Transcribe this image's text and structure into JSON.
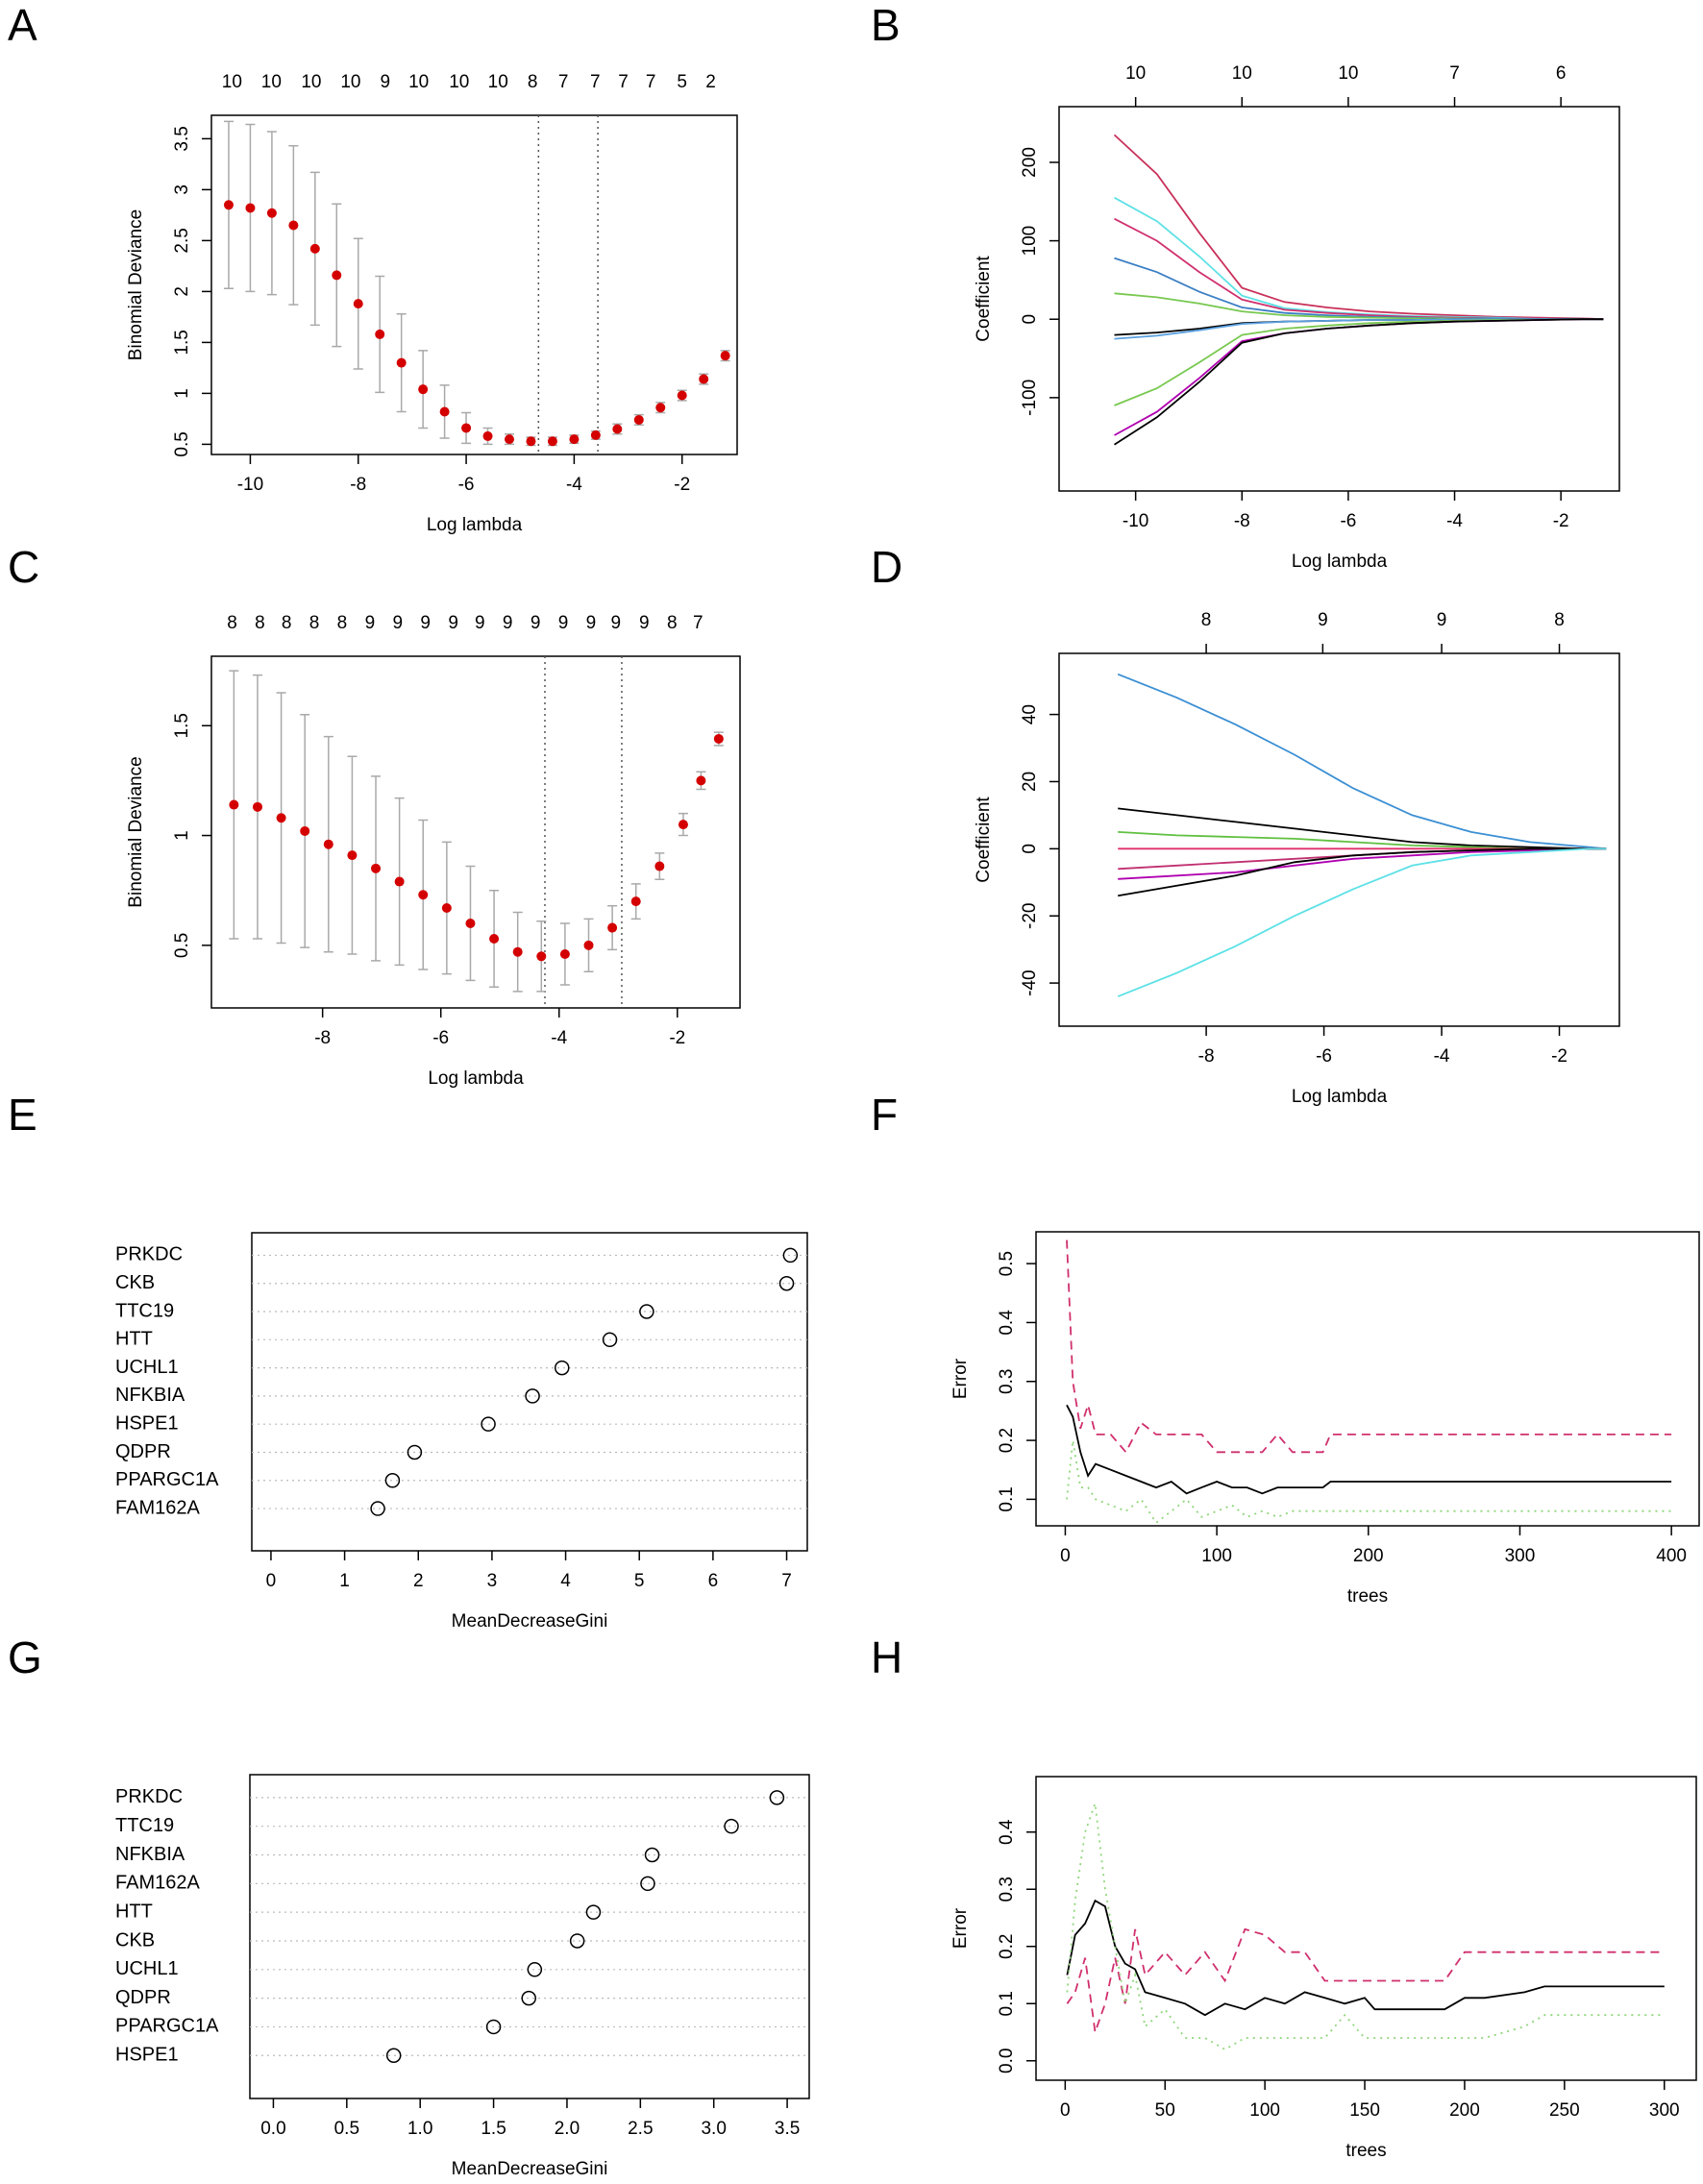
{
  "chart_data": [
    {
      "label": "A",
      "type": "errorbar",
      "xlabel": "Log lambda",
      "ylabel": "Binomial Deviance",
      "color": "#d40000",
      "error_color": "#a9a9a9",
      "x": [
        -10.4,
        -10.0,
        -9.6,
        -9.2,
        -8.8,
        -8.4,
        -8.0,
        -7.6,
        -7.2,
        -6.8,
        -6.4,
        -6.0,
        -5.6,
        -5.2,
        -4.8,
        -4.4,
        -4.0,
        -3.6,
        -3.2,
        -2.8,
        -2.4,
        -2.0,
        -1.6,
        -1.2
      ],
      "values": [
        2.85,
        2.82,
        2.77,
        2.65,
        2.42,
        2.16,
        1.88,
        1.58,
        1.3,
        1.04,
        0.82,
        0.66,
        0.58,
        0.55,
        0.53,
        0.53,
        0.55,
        0.59,
        0.65,
        0.74,
        0.86,
        0.98,
        1.14,
        1.37
      ],
      "errors": [
        0.82,
        0.82,
        0.8,
        0.78,
        0.75,
        0.7,
        0.64,
        0.57,
        0.48,
        0.38,
        0.26,
        0.15,
        0.08,
        0.05,
        0.04,
        0.04,
        0.04,
        0.04,
        0.05,
        0.05,
        0.05,
        0.05,
        0.05,
        0.05
      ],
      "xlim": [
        -10.72,
        -0.98
      ],
      "ylim": [
        0.4,
        3.73
      ],
      "xticks": [
        -10,
        -8,
        -6,
        -4,
        -2
      ],
      "yticks": [
        0.5,
        1.0,
        1.5,
        2.0,
        2.5,
        3.0,
        3.5
      ],
      "top_ticks": [
        {
          "value": -10.34,
          "label": "10"
        },
        {
          "value": -9.61,
          "label": "10"
        },
        {
          "value": -8.87,
          "label": "10"
        },
        {
          "value": -8.14,
          "label": "10"
        },
        {
          "value": -7.5,
          "label": "9"
        },
        {
          "value": -6.88,
          "label": "10"
        },
        {
          "value": -6.13,
          "label": "10"
        },
        {
          "value": -5.41,
          "label": "10"
        },
        {
          "value": -4.77,
          "label": "8"
        },
        {
          "value": -4.2,
          "label": "7"
        },
        {
          "value": -3.61,
          "label": "7"
        },
        {
          "value": -3.09,
          "label": "7"
        },
        {
          "value": -2.58,
          "label": "7"
        },
        {
          "value": -2.0,
          "label": "5"
        },
        {
          "value": -1.47,
          "label": "2"
        }
      ],
      "vlines": [
        -4.66,
        -3.56
      ]
    },
    {
      "label": "B",
      "type": "line",
      "xlabel": "Log lambda",
      "ylabel": "Coefficient",
      "x": [
        -10.4,
        -9.6,
        -8.8,
        -8.0,
        -7.2,
        -6.4,
        -5.6,
        -4.8,
        -4.0,
        -3.2,
        -2.4,
        -1.6,
        -1.2
      ],
      "series": [
        {
          "color": "#c8305a",
          "values": [
            235,
            185,
            110,
            40,
            22,
            15,
            10,
            7,
            5,
            3,
            2,
            1,
            0
          ]
        },
        {
          "color": "#5ce1e6",
          "values": [
            155,
            125,
            80,
            30,
            14,
            9,
            6,
            4,
            3,
            2,
            1,
            0.5,
            0
          ]
        },
        {
          "color": "#d0306e",
          "values": [
            128,
            100,
            60,
            25,
            12,
            8,
            5,
            3,
            2,
            1,
            1,
            0.5,
            0
          ]
        },
        {
          "color": "#3b7fc4",
          "values": [
            78,
            60,
            35,
            15,
            8,
            5,
            3,
            2,
            1,
            1,
            0,
            0,
            0
          ]
        },
        {
          "color": "#78c850",
          "values": [
            33,
            28,
            20,
            10,
            5,
            3,
            2,
            1,
            1,
            0,
            0,
            0,
            0
          ]
        },
        {
          "color": "#000000",
          "values": [
            -20,
            -17,
            -12,
            -5,
            -3,
            -2,
            -1,
            -1,
            0,
            0,
            0,
            0,
            0
          ]
        },
        {
          "color": "#5aa0e0",
          "values": [
            -25,
            -21,
            -14,
            -6,
            -3,
            -2,
            -1,
            -1,
            0,
            0,
            0,
            0,
            0
          ]
        },
        {
          "color": "#78c850",
          "values": [
            -110,
            -88,
            -55,
            -20,
            -12,
            -8,
            -5,
            -3,
            -2,
            -1,
            -1,
            0,
            0
          ]
        },
        {
          "color": "#b000b0",
          "values": [
            -148,
            -118,
            -75,
            -28,
            -18,
            -12,
            -8,
            -5,
            -3,
            -2,
            -1,
            0,
            0
          ]
        },
        {
          "color": "#000000",
          "values": [
            -160,
            -125,
            -80,
            -30,
            -18,
            -12,
            -8,
            -5,
            -3,
            -2,
            -1,
            0,
            0
          ]
        }
      ],
      "xlim": [
        -11.44,
        -0.9
      ],
      "ylim": [
        -219,
        271
      ],
      "xticks": [
        -10,
        -8,
        -6,
        -4,
        -2
      ],
      "yticks": [
        -100,
        0,
        100,
        200
      ],
      "top_ticks": [
        {
          "value": -10,
          "label": "10"
        },
        {
          "value": -8,
          "label": "10"
        },
        {
          "value": -6,
          "label": "10"
        },
        {
          "value": -4,
          "label": "7"
        },
        {
          "value": -2,
          "label": "6"
        }
      ]
    },
    {
      "label": "C",
      "type": "errorbar",
      "xlabel": "Log lambda",
      "ylabel": "Binomial Deviance",
      "color": "#d40000",
      "error_color": "#a9a9a9",
      "x": [
        -9.5,
        -9.1,
        -8.7,
        -8.3,
        -7.9,
        -7.5,
        -7.1,
        -6.7,
        -6.3,
        -5.9,
        -5.5,
        -5.1,
        -4.7,
        -4.3,
        -3.9,
        -3.5,
        -3.1,
        -2.7,
        -2.3,
        -1.9,
        -1.6,
        -1.3
      ],
      "values": [
        1.14,
        1.13,
        1.08,
        1.02,
        0.96,
        0.91,
        0.85,
        0.79,
        0.73,
        0.67,
        0.6,
        0.53,
        0.47,
        0.45,
        0.46,
        0.5,
        0.58,
        0.7,
        0.86,
        1.05,
        1.25,
        1.44
      ],
      "errors": [
        0.61,
        0.6,
        0.57,
        0.53,
        0.49,
        0.45,
        0.42,
        0.38,
        0.34,
        0.3,
        0.26,
        0.22,
        0.18,
        0.16,
        0.14,
        0.12,
        0.1,
        0.08,
        0.06,
        0.05,
        0.04,
        0.03
      ],
      "xlim": [
        -9.88,
        -0.94
      ],
      "ylim": [
        0.215,
        1.816
      ],
      "xticks": [
        -8,
        -6,
        -4,
        -2
      ],
      "yticks": [
        0.5,
        1.0,
        1.5
      ],
      "top_ticks": [
        {
          "value": -9.53,
          "label": "8"
        },
        {
          "value": -9.06,
          "label": "8"
        },
        {
          "value": -8.61,
          "label": "8"
        },
        {
          "value": -8.14,
          "label": "8"
        },
        {
          "value": -7.67,
          "label": "8"
        },
        {
          "value": -7.2,
          "label": "9"
        },
        {
          "value": -6.73,
          "label": "9"
        },
        {
          "value": -6.26,
          "label": "9"
        },
        {
          "value": -5.79,
          "label": "9"
        },
        {
          "value": -5.34,
          "label": "9"
        },
        {
          "value": -4.87,
          "label": "9"
        },
        {
          "value": -4.4,
          "label": "9"
        },
        {
          "value": -3.93,
          "label": "9"
        },
        {
          "value": -3.46,
          "label": "9"
        },
        {
          "value": -3.04,
          "label": "9"
        },
        {
          "value": -2.56,
          "label": "9"
        },
        {
          "value": -2.09,
          "label": "8"
        },
        {
          "value": -1.65,
          "label": "7"
        }
      ],
      "vlines": [
        -4.24,
        -2.94
      ]
    },
    {
      "label": "D",
      "type": "line",
      "xlabel": "Log lambda",
      "ylabel": "Coefficient",
      "x": [
        -9.5,
        -8.5,
        -7.5,
        -6.5,
        -5.5,
        -4.5,
        -3.5,
        -2.5,
        -1.5,
        -1.2
      ],
      "series": [
        {
          "color": "#3b8fd4",
          "values": [
            52,
            45,
            37,
            28,
            18,
            10,
            5,
            2,
            0.5,
            0
          ]
        },
        {
          "color": "#000000",
          "values": [
            12,
            10,
            8,
            6,
            4,
            2,
            1,
            0.5,
            0,
            0
          ]
        },
        {
          "color": "#60c040",
          "values": [
            5,
            4,
            3.5,
            3,
            2,
            1,
            0.5,
            0,
            0,
            0
          ]
        },
        {
          "color": "#e0306a",
          "values": [
            0,
            0,
            0,
            0,
            0,
            0,
            0,
            0,
            0,
            0
          ]
        },
        {
          "color": "#c03070",
          "values": [
            -6,
            -5,
            -4,
            -3,
            -2,
            -1,
            -0.5,
            0,
            0,
            0
          ]
        },
        {
          "color": "#b000b0",
          "values": [
            -9,
            -8,
            -7,
            -5,
            -3,
            -2,
            -1,
            -0.5,
            0,
            0
          ]
        },
        {
          "color": "#000000",
          "values": [
            -14,
            -11,
            -8,
            -4,
            -2,
            -1,
            -0.5,
            0,
            0,
            0
          ]
        },
        {
          "color": "#5ce1e6",
          "values": [
            -44,
            -37,
            -29,
            -20,
            -12,
            -5,
            -2,
            -1,
            0,
            0
          ]
        }
      ],
      "xlim": [
        -10.5,
        -0.98
      ],
      "ylim": [
        -52.85,
        58.2
      ],
      "xticks": [
        -8,
        -6,
        -4,
        -2
      ],
      "yticks": [
        -40,
        -20,
        0,
        20,
        40
      ],
      "top_ticks": [
        {
          "value": -8,
          "label": "8"
        },
        {
          "value": -6.02,
          "label": "9"
        },
        {
          "value": -4,
          "label": "9"
        },
        {
          "value": -2,
          "label": "8"
        }
      ]
    },
    {
      "label": "E",
      "type": "dot",
      "xlabel": "MeanDecreaseGini",
      "categories": [
        "PRKDC",
        "CKB",
        "TTC19",
        "HTT",
        "UCHL1",
        "NFKBIA",
        "HSPE1",
        "QDPR",
        "PPARGC1A",
        "FAM162A"
      ],
      "values": [
        7.05,
        7.0,
        5.1,
        4.6,
        3.95,
        3.55,
        2.95,
        1.95,
        1.65,
        1.45
      ],
      "xlim": [
        -0.26,
        7.28
      ],
      "xticks": [
        0,
        1,
        2,
        3,
        4,
        5,
        6,
        7
      ]
    },
    {
      "label": "F",
      "type": "line",
      "xlabel": "trees",
      "ylabel": "Error",
      "x": [
        1,
        5,
        10,
        15,
        20,
        30,
        40,
        50,
        60,
        70,
        80,
        90,
        100,
        110,
        120,
        130,
        140,
        150,
        160,
        170,
        175,
        200,
        250,
        300,
        350,
        400
      ],
      "series": [
        {
          "color": "#000000",
          "style": "solid",
          "values": [
            0.26,
            0.24,
            0.18,
            0.14,
            0.16,
            0.15,
            0.14,
            0.13,
            0.12,
            0.13,
            0.11,
            0.12,
            0.13,
            0.12,
            0.12,
            0.11,
            0.12,
            0.12,
            0.12,
            0.12,
            0.13,
            0.13,
            0.13,
            0.13,
            0.13,
            0.13
          ]
        },
        {
          "color": "#d0306e",
          "style": "dashed",
          "values": [
            0.54,
            0.3,
            0.22,
            0.26,
            0.21,
            0.21,
            0.18,
            0.23,
            0.21,
            0.21,
            0.21,
            0.21,
            0.18,
            0.18,
            0.18,
            0.18,
            0.21,
            0.18,
            0.18,
            0.18,
            0.21,
            0.21,
            0.21,
            0.21,
            0.21,
            0.21
          ]
        },
        {
          "color": "#8fd67a",
          "style": "dotted",
          "values": [
            0.1,
            0.2,
            0.12,
            0.12,
            0.1,
            0.09,
            0.08,
            0.1,
            0.06,
            0.08,
            0.1,
            0.07,
            0.08,
            0.09,
            0.07,
            0.08,
            0.07,
            0.08,
            0.08,
            0.08,
            0.08,
            0.08,
            0.08,
            0.08,
            0.08,
            0.08
          ]
        }
      ],
      "xlim": [
        -19.3,
        418.3
      ],
      "ylim": [
        0.055,
        0.554
      ],
      "xticks": [
        0,
        100,
        200,
        300,
        400
      ],
      "yticks": [
        0.1,
        0.2,
        0.3,
        0.4,
        0.5
      ]
    },
    {
      "label": "G",
      "type": "dot",
      "xlabel": "MeanDecreaseGini",
      "categories": [
        "PRKDC",
        "TTC19",
        "NFKBIA",
        "FAM162A",
        "HTT",
        "CKB",
        "UCHL1",
        "QDPR",
        "PPARGC1A",
        "HSPE1"
      ],
      "values": [
        3.43,
        3.12,
        2.58,
        2.55,
        2.18,
        2.07,
        1.78,
        1.74,
        1.5,
        0.82
      ],
      "xlim": [
        -0.16,
        3.65
      ],
      "xticks": [
        {
          "value": 0,
          "label": "0.0"
        },
        0.5,
        {
          "value": 1,
          "label": "1.0"
        },
        1.5,
        {
          "value": 2,
          "label": "2.0"
        },
        2.5,
        {
          "value": 3,
          "label": "3.0"
        },
        3.5
      ]
    },
    {
      "label": "H",
      "type": "line",
      "xlabel": "trees",
      "ylabel": "Error",
      "x": [
        1,
        5,
        10,
        15,
        20,
        25,
        30,
        35,
        40,
        50,
        60,
        70,
        80,
        90,
        100,
        110,
        120,
        130,
        140,
        150,
        155,
        190,
        200,
        210,
        230,
        240,
        250,
        300
      ],
      "series": [
        {
          "color": "#000000",
          "style": "solid",
          "values": [
            0.15,
            0.22,
            0.24,
            0.28,
            0.27,
            0.2,
            0.17,
            0.16,
            0.12,
            0.11,
            0.1,
            0.08,
            0.1,
            0.09,
            0.11,
            0.1,
            0.12,
            0.11,
            0.1,
            0.11,
            0.09,
            0.09,
            0.11,
            0.11,
            0.12,
            0.13,
            0.13,
            0.13
          ]
        },
        {
          "color": "#d0306e",
          "style": "dashed",
          "values": [
            0.1,
            0.12,
            0.18,
            0.05,
            0.1,
            0.18,
            0.1,
            0.23,
            0.15,
            0.19,
            0.15,
            0.19,
            0.14,
            0.23,
            0.22,
            0.19,
            0.19,
            0.14,
            0.14,
            0.14,
            0.14,
            0.14,
            0.19,
            0.19,
            0.19,
            0.19,
            0.19,
            0.19
          ]
        },
        {
          "color": "#8fd67a",
          "style": "dotted",
          "values": [
            0.12,
            0.28,
            0.4,
            0.45,
            0.3,
            0.2,
            0.1,
            0.15,
            0.06,
            0.09,
            0.04,
            0.04,
            0.02,
            0.04,
            0.04,
            0.04,
            0.04,
            0.04,
            0.08,
            0.04,
            0.04,
            0.04,
            0.04,
            0.04,
            0.06,
            0.08,
            0.08,
            0.08
          ]
        }
      ],
      "xlim": [
        -14.6,
        316
      ],
      "ylim": [
        -0.034,
        0.497
      ],
      "xticks": [
        0,
        50,
        100,
        150,
        200,
        250,
        300
      ],
      "yticks": [
        {
          "value": 0,
          "label": "0.0"
        },
        0.1,
        0.2,
        0.3,
        0.4
      ]
    }
  ]
}
